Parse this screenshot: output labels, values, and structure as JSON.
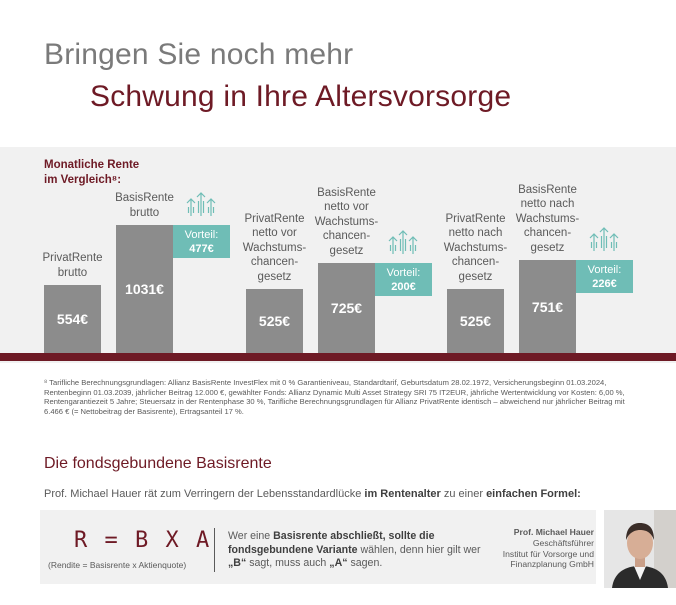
{
  "headline": {
    "line1": "Bringen Sie noch mehr",
    "line2": "Schwung in Ihre Altersvorsorge"
  },
  "chart_data": {
    "type": "bar",
    "title_lines": [
      "Monatliche Rente",
      "im Vergleich⁸:"
    ],
    "categories": [
      [
        "PrivatRente",
        "brutto"
      ],
      [
        "BasisRente",
        "brutto"
      ],
      [
        "PrivatRente",
        "netto vor",
        "Wachstums-",
        "chancen-",
        "gesetz"
      ],
      [
        "BasisRente",
        "netto vor",
        "Wachstums-",
        "chancen-",
        "gesetz"
      ],
      [
        "PrivatRente",
        "netto nach",
        "Wachstums-",
        "chancen-",
        "gesetz"
      ],
      [
        "BasisRente",
        "netto nach",
        "Wachstums-",
        "chancen-",
        "gesetz"
      ]
    ],
    "values": [
      554,
      1031,
      525,
      725,
      525,
      751
    ],
    "value_labels": [
      "554€",
      "1031€",
      "525€",
      "725€",
      "525€",
      "751€"
    ],
    "advantages": [
      {
        "label": "Vorteil:",
        "value": "477€"
      },
      {
        "label": "Vorteil:",
        "value": "200€"
      },
      {
        "label": "Vorteil:",
        "value": "226€"
      }
    ],
    "colors": {
      "bar": "#8c8c8c",
      "advantage": "#6fbdb6",
      "accent": "#6e1a25",
      "panel": "#f1f1f1"
    }
  },
  "footnote": "⁸ Tarifliche Berechnungsgrundlagen: Allianz BasisRente InvestFlex mit 0 % Garantieniveau, Standardtarif, Geburtsdatum 28.02.1972, Versicherungsbeginn 01.03.2024, Rentenbeginn 01.03.2039, jährlicher Beitrag 12.000 €, gewählter Fonds: Allianz Dynamic Multi Asset Strategy SRI 75 IT2EUR, jährliche Wertentwicklung vor Kosten: 6,00 %, Rentengarantiezeit 5 Jahre; Steuersatz in der Rentenphase 30 %, Tarifliche Berechnungsgrundlagen für Allianz PrivatRente identisch – abweichend nur jährlicher Beitrag mit 6.466 € (= Nettobeitrag der Basisrente), Ertragsanteil 17 %.",
  "section": {
    "title": "Die fondsgebundene Basisrente",
    "intro_pre": "Prof. Michael Hauer rät zum Verringern der Lebensstandardlücke ",
    "intro_b1": "im Rentenalter",
    "intro_mid": " zu einer ",
    "intro_b2": "einfachen Formel:"
  },
  "formula": {
    "text": "R = B X A",
    "note": "(Rendite = Basisrente x Aktienquote)"
  },
  "quote": {
    "p1": "Wer eine ",
    "b1": "Basisrente abschließt, sollte die fondsgebundene Variante",
    "p2": " wählen, denn hier gilt wer ",
    "b2": "„B“",
    "p3": " sagt, muss auch ",
    "b3": "„A“",
    "p4": " sagen."
  },
  "person": {
    "name": "Prof. Michael Hauer",
    "role": "Geschäftsführer",
    "org1": "Institut für Vorsorge und",
    "org2": "Finanzplanung GmbH"
  }
}
